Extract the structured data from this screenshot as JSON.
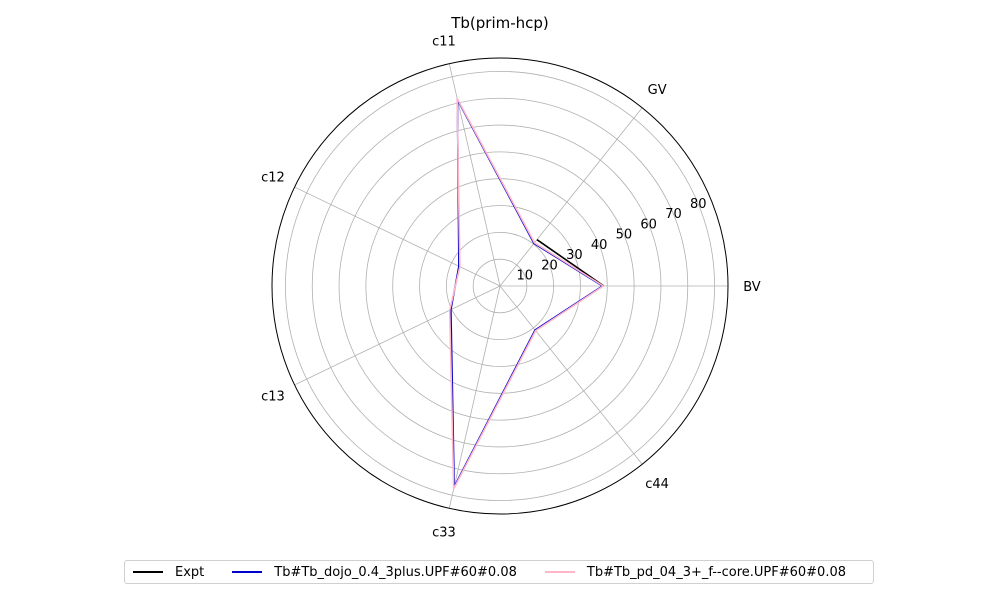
{
  "chart_data": {
    "type": "radar",
    "title": "Tb(prim-hcp)",
    "axes": [
      "BV",
      "GV",
      "c11",
      "c12",
      "c13",
      "c33",
      "c44"
    ],
    "rlim": [
      0,
      85
    ],
    "rticks": [
      10,
      20,
      30,
      40,
      50,
      60,
      70,
      80
    ],
    "grid": true,
    "legend_position": "bottom",
    "series": [
      {
        "name": "Expt",
        "color": "#000000",
        "values": [
          38.7,
          22.1,
          null,
          null,
          null,
          null,
          null
        ]
      },
      {
        "name": "Tb#Tb_dojo_0.4_3plus.UPF#60#0.08",
        "color": "#0000cc",
        "values": [
          38.2,
          20.3,
          71.3,
          17.0,
          20.3,
          76.8,
          21.0
        ]
      },
      {
        "name": "Tb#Tb_pd_04_3+_f--core.UPF#60#0.08",
        "color": "#ffb6c8",
        "values": [
          38.5,
          20.6,
          71.8,
          16.6,
          20.8,
          77.5,
          21.3
        ]
      }
    ]
  }
}
